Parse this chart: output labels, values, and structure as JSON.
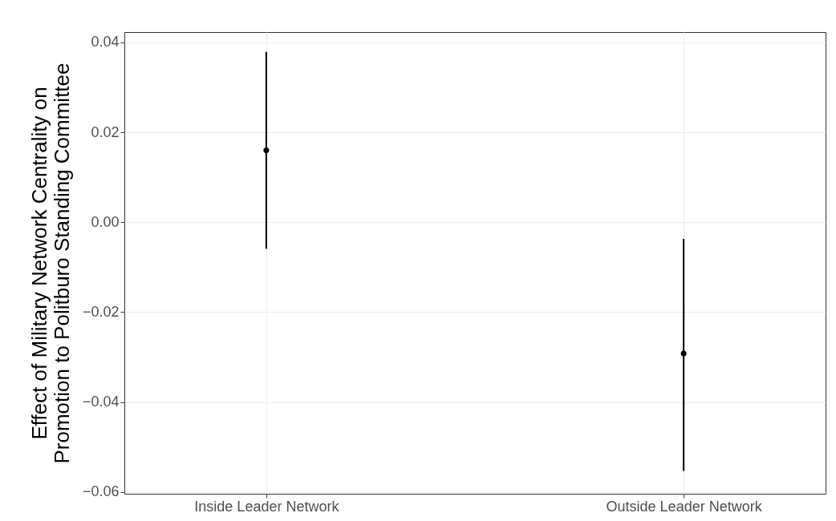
{
  "chart_data": {
    "type": "scatter",
    "ylabel": "Effect of Military Network Centrality on\nPromotion to Politburo Standing Committee",
    "categories": [
      "Inside Leader Network",
      "Outside Leader Network"
    ],
    "values": [
      0.016,
      -0.0292
    ],
    "errors": [
      [
        -0.0059,
        0.0379
      ],
      [
        -0.0553,
        -0.0037
      ]
    ],
    "color": "#000000",
    "marker": "circle",
    "grid": true,
    "ylim": [
      -0.0604,
      0.0423
    ],
    "yticks": [
      {
        "value": -0.06,
        "label": "−0.06"
      },
      {
        "value": -0.04,
        "label": "−0.04"
      },
      {
        "value": -0.02,
        "label": "−0.02"
      },
      {
        "value": 0,
        "label": "0.00"
      },
      {
        "value": 0.02,
        "label": "0.02"
      },
      {
        "value": 0.04,
        "label": "0.04"
      }
    ]
  }
}
